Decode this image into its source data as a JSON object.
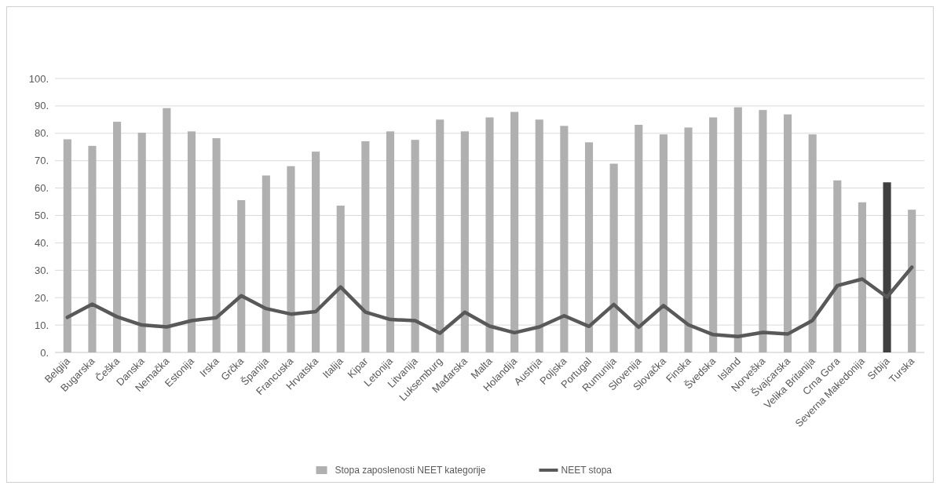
{
  "chart_data": {
    "type": "bar",
    "categories": [
      "Belgija",
      "Bugarska",
      "Češka",
      "Danska",
      "Nemačka",
      "Estonija",
      "Irska",
      "Grčka",
      "Španija",
      "Francuska",
      "Hrvatska",
      "Italija",
      "Kipar",
      "Letonija",
      "Litvanija",
      "Luksemburg",
      "Mađarska",
      "Malta",
      "Holandija",
      "Austrija",
      "Poljska",
      "Portugal",
      "Rumunija",
      "Slovenija",
      "Slovačka",
      "Finska",
      "Švedska",
      "Island",
      "Norveška",
      "Švajcarska",
      "Velika Britanija",
      "Crna Gora",
      "Severna Makedonija",
      "Srbija",
      "Turska"
    ],
    "series": [
      {
        "name": "Stopa zaposlenosti NEET kategorije",
        "color": "#b0b0b0",
        "colors": [
          "#b0b0b0",
          "#b0b0b0",
          "#b0b0b0",
          "#b0b0b0",
          "#b0b0b0",
          "#b0b0b0",
          "#b0b0b0",
          "#b0b0b0",
          "#b0b0b0",
          "#b0b0b0",
          "#b0b0b0",
          "#b0b0b0",
          "#b0b0b0",
          "#b0b0b0",
          "#b0b0b0",
          "#b0b0b0",
          "#b0b0b0",
          "#b0b0b0",
          "#b0b0b0",
          "#b0b0b0",
          "#b0b0b0",
          "#b0b0b0",
          "#b0b0b0",
          "#b0b0b0",
          "#b0b0b0",
          "#b0b0b0",
          "#b0b0b0",
          "#b0b0b0",
          "#b0b0b0",
          "#b0b0b0",
          "#b0b0b0",
          "#b0b0b0",
          "#b0b0b0",
          "#404040",
          "#b0b0b0"
        ],
        "values": [
          77.8,
          75.4,
          84.2,
          80.2,
          89.2,
          80.7,
          78.2,
          55.6,
          64.6,
          68.0,
          73.3,
          53.6,
          77.1,
          80.7,
          77.6,
          85.0,
          80.7,
          85.8,
          87.8,
          85.0,
          82.7,
          76.7,
          68.9,
          83.1,
          79.6,
          82.1,
          85.8,
          89.5,
          88.5,
          86.9,
          79.6,
          62.8,
          54.8,
          62.1,
          52.1
        ]
      },
      {
        "name": "NEET stopa",
        "type": "line",
        "color": "#595959",
        "values": [
          12.8,
          17.6,
          13.0,
          10.0,
          9.3,
          11.6,
          12.7,
          20.7,
          16.0,
          14.0,
          14.9,
          23.9,
          14.7,
          12.0,
          11.6,
          7.0,
          14.7,
          9.6,
          7.2,
          9.3,
          13.4,
          9.5,
          17.5,
          9.2,
          17.1,
          10.1,
          6.5,
          5.8,
          7.3,
          6.7,
          11.7,
          24.4,
          26.8,
          20.2,
          31.1
        ]
      }
    ],
    "ylim": [
      0,
      100
    ],
    "yticks": [
      {
        "value": 0,
        "label": "0."
      },
      {
        "value": 10,
        "label": "10."
      },
      {
        "value": 20,
        "label": "20."
      },
      {
        "value": 30,
        "label": "30."
      },
      {
        "value": 40,
        "label": "40."
      },
      {
        "value": 50,
        "label": "50."
      },
      {
        "value": 60,
        "label": "60."
      },
      {
        "value": 70,
        "label": "70."
      },
      {
        "value": 80,
        "label": "80."
      },
      {
        "value": 90,
        "label": "90."
      },
      {
        "value": 100,
        "label": "100."
      }
    ],
    "grid": "y",
    "legend": "bottom",
    "marker": "none",
    "line_style": "solid"
  }
}
